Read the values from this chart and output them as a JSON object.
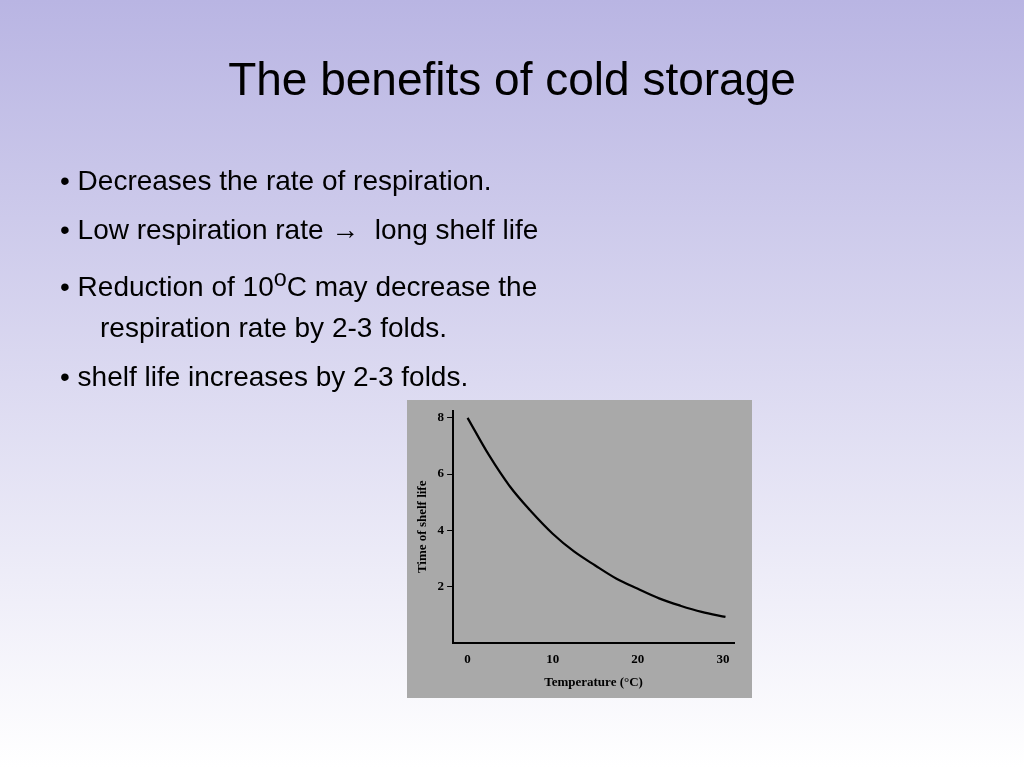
{
  "chart_data": {
    "type": "line",
    "title": "The benefits of cold storage",
    "annotations": [
      "• Decreases the rate of respiration.",
      "• Low respiration rate →  long shelf life",
      "• Reduction of 10$^{o}$C may decrease the respiration rate by 2-3 folds.",
      "• shelf life increases by 2-3 folds."
    ],
    "xlabel": "Temperature (°C)",
    "ylabel": "Time of shelf life",
    "x": [
      0,
      2.5,
      5,
      7.5,
      10,
      12.5,
      15,
      17.5,
      20,
      22.5,
      25,
      27.5,
      30.3
    ],
    "series": [
      {
        "color": "#000000",
        "values": [
          8,
          6.68,
          5.55,
          4.66,
          3.88,
          3.25,
          2.75,
          2.28,
          1.92,
          1.58,
          1.32,
          1.1,
          0.92
        ]
      }
    ],
    "xlim": [
      -1.7,
      31.3
    ],
    "xticks": [
      0,
      10,
      20,
      30
    ],
    "ylim": [
      0,
      8.25
    ],
    "yticks": [
      2,
      4,
      6,
      8
    ],
    "grid": false,
    "legend": false,
    "marker": "none",
    "line_style": "solid"
  }
}
